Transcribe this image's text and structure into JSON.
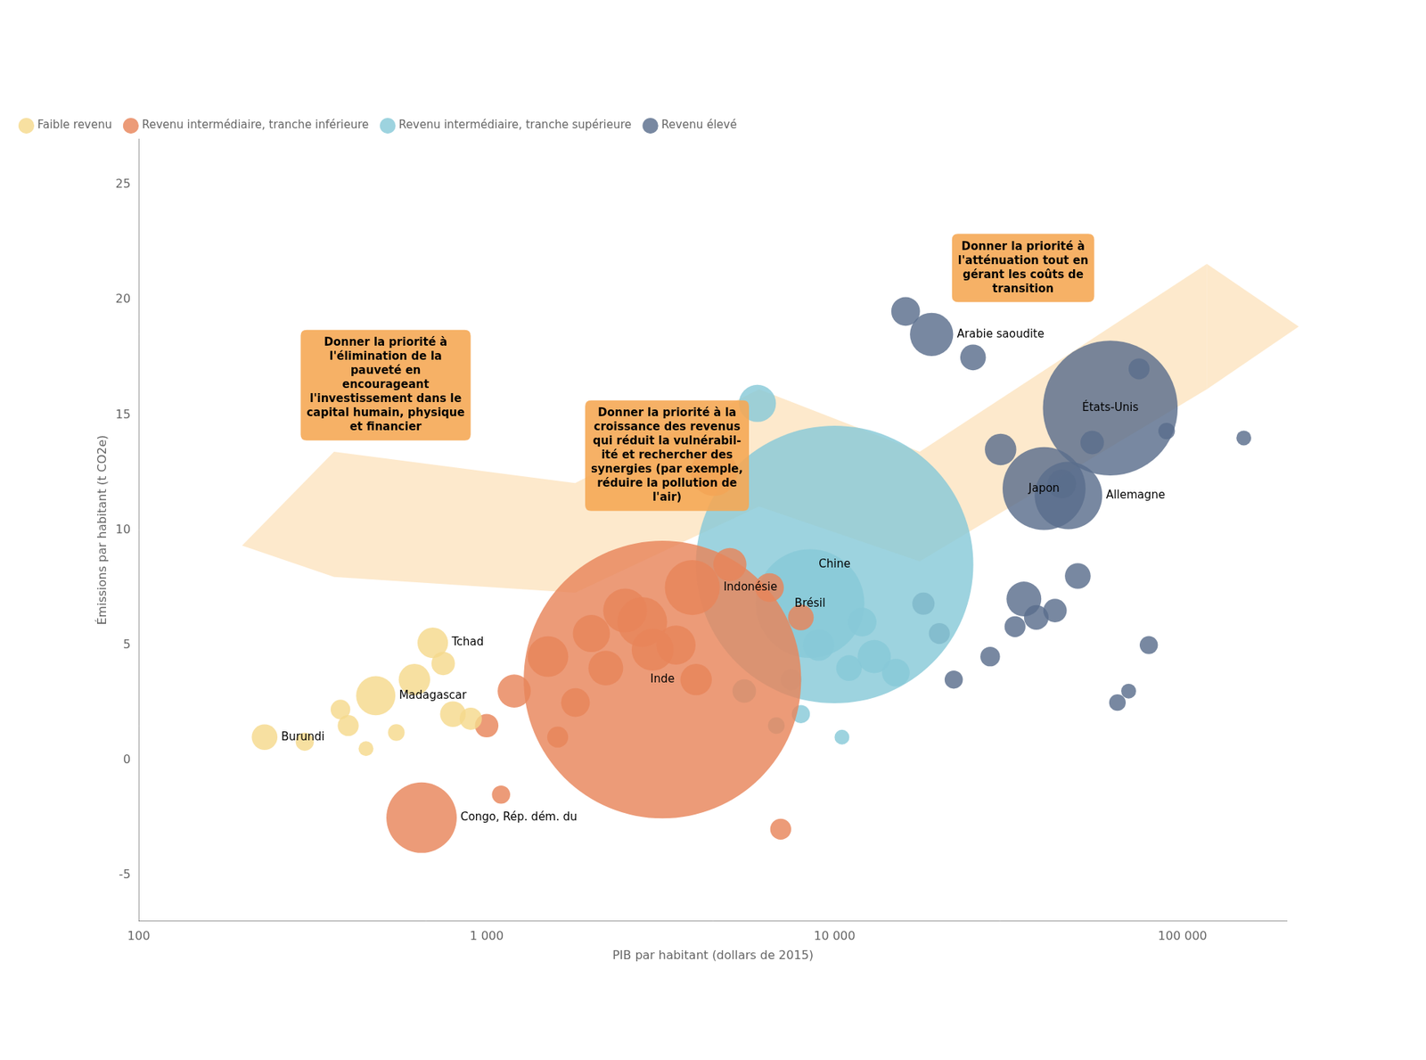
{
  "chart_data": {
    "type": "bubble",
    "xlabel": "PIB par habitant (dollars de 2015)",
    "ylabel": "Émissions par habitant (t CO2e)",
    "log": "x",
    "xlim": [
      100,
      200000
    ],
    "ylim": [
      -7,
      27
    ],
    "xticks": [
      100,
      {
        "value": 1000,
        "label": "1 000"
      },
      {
        "value": 10000,
        "label": "10 000"
      },
      {
        "value": 100000,
        "label": "100 000"
      }
    ],
    "yticks": [
      -5,
      0,
      5,
      10,
      15,
      20,
      25
    ],
    "grid": false,
    "legend": "upper left",
    "series": [
      {
        "name": "Faible revenu",
        "color": "#F5D98C",
        "x": [
          230,
          480,
          700,
          550,
          400,
          300,
          620,
          800,
          450,
          750,
          380,
          900
        ],
        "y": [
          1.0,
          2.8,
          5.1,
          1.2,
          1.5,
          0.8,
          3.5,
          2.0,
          0.5,
          4.2,
          2.2,
          1.8
        ],
        "population": [
          12,
          28,
          17,
          5,
          8,
          6,
          18,
          12,
          4,
          10,
          7,
          9
        ],
        "point_labels": [
          "Burundi",
          "Madagascar",
          "Tchad",
          null,
          null,
          null,
          null,
          null,
          null,
          null,
          null,
          null
        ]
      },
      {
        "name": "Revenu intermédiaire, tranche inférieure",
        "color": "#E8855A",
        "x": [
          650,
          3200,
          3900,
          4500,
          1500,
          2000,
          2500,
          1200,
          1800,
          2200,
          1000,
          3500,
          4000,
          2800,
          1600,
          3000,
          5000,
          6500,
          8000,
          7000,
          1100
        ],
        "y": [
          -2.5,
          3.5,
          7.5,
          12.5,
          4.5,
          5.5,
          6.5,
          3.0,
          2.5,
          4.0,
          1.5,
          5.0,
          3.5,
          6.0,
          1.0,
          4.8,
          8.5,
          7.5,
          6.2,
          -3.0,
          -1.5
        ],
        "population": [
          90,
          1400,
          55,
          40,
          30,
          25,
          35,
          20,
          15,
          22,
          10,
          28,
          18,
          45,
          8,
          32,
          20,
          15,
          12,
          8,
          6
        ],
        "point_labels": [
          "Congo, Rép. dém. du",
          "Inde",
          "Indonésie",
          null,
          null,
          null,
          null,
          null,
          null,
          null,
          null,
          null,
          null,
          null,
          null,
          null,
          null,
          null,
          null,
          null,
          null
        ]
      },
      {
        "name": "Revenu intermédiaire, tranche supérieure",
        "color": "#88C9D8",
        "x": [
          10000,
          8500,
          6000,
          9000,
          11000,
          7500,
          12000,
          5500,
          8000,
          13000,
          15000,
          6800,
          10500
        ],
        "y": [
          8.5,
          6.8,
          15.5,
          5.0,
          4.0,
          3.5,
          6.0,
          3.0,
          2.0,
          4.5,
          3.8,
          1.5,
          1.0
        ],
        "population": [
          1400,
          215,
          25,
          18,
          12,
          8,
          15,
          10,
          6,
          20,
          14,
          5,
          4
        ],
        "point_labels": [
          "Chine",
          "Brésil",
          null,
          null,
          null,
          null,
          null,
          null,
          null,
          null,
          null,
          null,
          null
        ]
      },
      {
        "name": "Revenu élevé",
        "color": "#5A6E8C",
        "x": [
          19000,
          62000,
          40000,
          47000,
          16000,
          25000,
          30000,
          55000,
          75000,
          80000,
          90000,
          35000,
          43000,
          50000,
          20000,
          28000,
          65000,
          18000,
          38000,
          22000,
          33000,
          45000,
          70000,
          150000
        ],
        "y": [
          18.5,
          15.3,
          11.8,
          11.5,
          19.5,
          17.5,
          13.5,
          13.8,
          17.0,
          5.0,
          14.3,
          7.0,
          6.5,
          8.0,
          5.5,
          4.5,
          2.5,
          6.8,
          6.2,
          3.5,
          5.8,
          12.0,
          3.0,
          14.0
        ],
        "population": [
          34,
          330,
          125,
          83,
          15,
          12,
          18,
          10,
          8,
          6,
          5,
          22,
          10,
          12,
          8,
          7,
          5,
          9,
          11,
          6,
          8,
          15,
          4,
          4
        ],
        "point_labels": [
          "Arabie saoudite",
          "États-Unis",
          "Japon",
          "Allemagne",
          null,
          null,
          null,
          null,
          null,
          null,
          null,
          null,
          null,
          null,
          null,
          null,
          null,
          null,
          null,
          null,
          null,
          null,
          null,
          null
        ]
      }
    ],
    "annotations": [
      {
        "text": "Donner la priorité à\nl'élimination de la\npauveté en\nencourageant\nl'investissement dans le\ncapital humain, physique\net financier",
        "color": "#F5A855"
      },
      {
        "text": "Donner la priorité à la\ncroissance des revenus\nqui réduit la vulnérabil-\nité et rechercher des\nsynergies (par exemple,\nréduire la pollution de\nl'air)",
        "color": "#F5A855"
      },
      {
        "text": "Donner la priorité à\nl'atténuation tout en\ngérant les coûts de\ntransition",
        "color": "#F5A855"
      }
    ]
  }
}
